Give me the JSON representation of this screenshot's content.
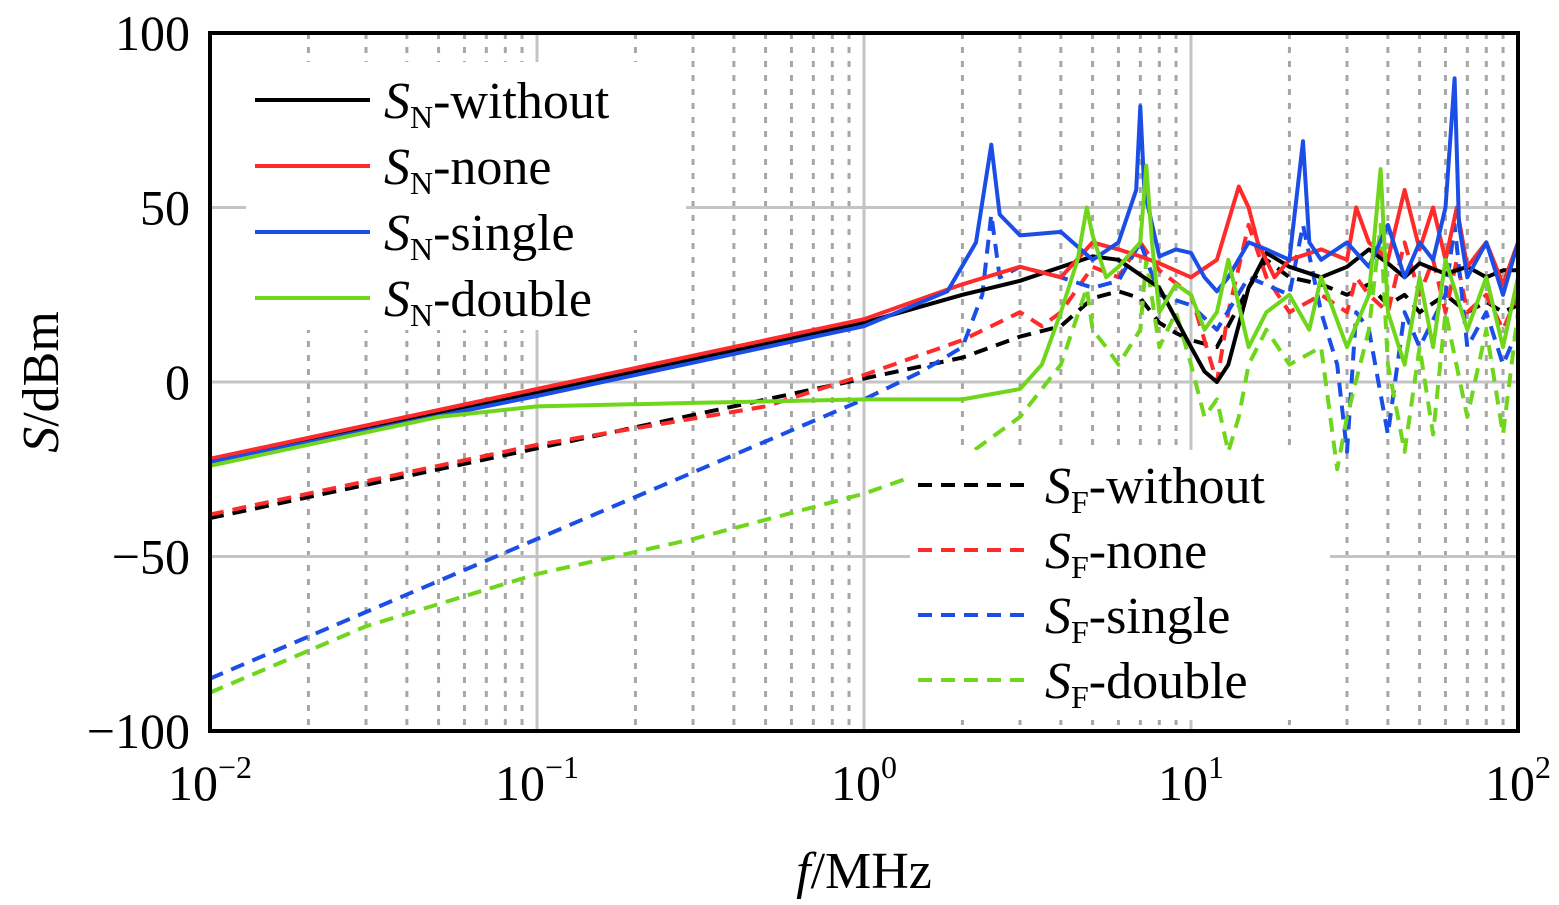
{
  "chart_data": {
    "type": "line",
    "xscale": "log",
    "xlim": [
      0.01,
      100
    ],
    "ylim": [
      -100,
      100
    ],
    "grid": true,
    "xlabel": {
      "italic": "f",
      "rest": "/MHz"
    },
    "ylabel": {
      "italic": "S",
      "rest": "/dBm"
    },
    "xticks": [
      {
        "value": 0.01,
        "base": "10",
        "exp": "−2"
      },
      {
        "value": 0.1,
        "base": "10",
        "exp": "−1"
      },
      {
        "value": 1,
        "base": "10",
        "exp": "0"
      },
      {
        "value": 10,
        "base": "10",
        "exp": "1"
      },
      {
        "value": 100,
        "base": "10",
        "exp": "2"
      }
    ],
    "yticks": [
      {
        "value": -100,
        "label": "−100"
      },
      {
        "value": -50,
        "label": "−50"
      },
      {
        "value": 0,
        "label": "0"
      },
      {
        "value": 50,
        "label": "50"
      },
      {
        "value": 100,
        "label": "100"
      }
    ],
    "legends": [
      {
        "placement": "top-left",
        "entries": [
          0,
          1,
          2,
          3
        ]
      },
      {
        "placement": "bottom-right",
        "entries": [
          4,
          5,
          6,
          7
        ]
      }
    ],
    "series": [
      {
        "name": "without",
        "symbol": "S",
        "sub": "N",
        "color": "#000000",
        "dash": "solid",
        "points": [
          [
            0.01,
            -23
          ],
          [
            0.1,
            -3
          ],
          [
            1,
            17
          ],
          [
            2,
            25
          ],
          [
            3,
            29
          ],
          [
            5,
            36
          ],
          [
            6,
            35
          ],
          [
            8,
            27
          ],
          [
            10,
            10
          ],
          [
            11,
            3
          ],
          [
            12,
            0
          ],
          [
            13,
            5
          ],
          [
            15,
            27
          ],
          [
            17,
            37
          ],
          [
            20,
            33
          ],
          [
            25,
            30
          ],
          [
            30,
            33
          ],
          [
            35,
            38
          ],
          [
            40,
            34
          ],
          [
            45,
            30
          ],
          [
            50,
            34
          ],
          [
            60,
            31
          ],
          [
            70,
            33
          ],
          [
            80,
            30
          ],
          [
            90,
            32
          ],
          [
            100,
            32
          ]
        ]
      },
      {
        "name": "none",
        "symbol": "S",
        "sub": "N",
        "color": "#ff2a2a",
        "dash": "solid",
        "points": [
          [
            0.01,
            -22
          ],
          [
            0.1,
            -2
          ],
          [
            1,
            18
          ],
          [
            2,
            28
          ],
          [
            3,
            33
          ],
          [
            4,
            30
          ],
          [
            5,
            40
          ],
          [
            6,
            38
          ],
          [
            7,
            36
          ],
          [
            8,
            34
          ],
          [
            10,
            30
          ],
          [
            12,
            35
          ],
          [
            14,
            56
          ],
          [
            15,
            50
          ],
          [
            16,
            40
          ],
          [
            18,
            30
          ],
          [
            20,
            35
          ],
          [
            25,
            38
          ],
          [
            30,
            35
          ],
          [
            32,
            50
          ],
          [
            35,
            40
          ],
          [
            40,
            35
          ],
          [
            45,
            55
          ],
          [
            50,
            38
          ],
          [
            55,
            50
          ],
          [
            60,
            35
          ],
          [
            65,
            50
          ],
          [
            70,
            33
          ],
          [
            80,
            40
          ],
          [
            90,
            28
          ],
          [
            100,
            40
          ]
        ]
      },
      {
        "name": "single",
        "symbol": "S",
        "sub": "N",
        "color": "#1a4ee6",
        "dash": "solid",
        "points": [
          [
            0.01,
            -23
          ],
          [
            0.1,
            -4
          ],
          [
            1,
            16
          ],
          [
            1.8,
            26
          ],
          [
            2.2,
            40
          ],
          [
            2.45,
            68
          ],
          [
            2.6,
            48
          ],
          [
            3,
            42
          ],
          [
            4,
            43
          ],
          [
            5,
            35
          ],
          [
            6,
            40
          ],
          [
            6.8,
            55
          ],
          [
            7,
            79
          ],
          [
            7.2,
            55
          ],
          [
            8,
            36
          ],
          [
            9,
            38
          ],
          [
            10,
            37
          ],
          [
            11,
            30
          ],
          [
            12,
            26
          ],
          [
            13,
            30
          ],
          [
            15,
            40
          ],
          [
            17,
            38
          ],
          [
            20,
            35
          ],
          [
            22,
            69
          ],
          [
            23,
            40
          ],
          [
            25,
            35
          ],
          [
            30,
            40
          ],
          [
            35,
            33
          ],
          [
            40,
            45
          ],
          [
            45,
            30
          ],
          [
            50,
            40
          ],
          [
            55,
            35
          ],
          [
            60,
            50
          ],
          [
            64,
            87
          ],
          [
            66,
            45
          ],
          [
            70,
            30
          ],
          [
            80,
            40
          ],
          [
            90,
            25
          ],
          [
            100,
            40
          ]
        ]
      },
      {
        "name": "double",
        "symbol": "S",
        "sub": "N",
        "color": "#6fd61b",
        "dash": "solid",
        "points": [
          [
            0.01,
            -24
          ],
          [
            0.05,
            -10
          ],
          [
            0.1,
            -7
          ],
          [
            0.3,
            -6
          ],
          [
            1,
            -5
          ],
          [
            2,
            -5
          ],
          [
            3,
            -2
          ],
          [
            3.5,
            5
          ],
          [
            4,
            20
          ],
          [
            4.5,
            35
          ],
          [
            4.8,
            50
          ],
          [
            5,
            42
          ],
          [
            5.5,
            30
          ],
          [
            6,
            33
          ],
          [
            7,
            40
          ],
          [
            7.3,
            62
          ],
          [
            7.6,
            40
          ],
          [
            8,
            20
          ],
          [
            9,
            28
          ],
          [
            10,
            25
          ],
          [
            11,
            15
          ],
          [
            12,
            20
          ],
          [
            13,
            35
          ],
          [
            15,
            10
          ],
          [
            17,
            20
          ],
          [
            20,
            25
          ],
          [
            23,
            15
          ],
          [
            25,
            30
          ],
          [
            30,
            10
          ],
          [
            35,
            25
          ],
          [
            38,
            61
          ],
          [
            40,
            20
          ],
          [
            45,
            5
          ],
          [
            50,
            30
          ],
          [
            55,
            10
          ],
          [
            60,
            35
          ],
          [
            70,
            15
          ],
          [
            80,
            30
          ],
          [
            90,
            10
          ],
          [
            100,
            30
          ]
        ]
      },
      {
        "name": "without",
        "symbol": "S",
        "sub": "F",
        "color": "#000000",
        "dash": "dashed",
        "points": [
          [
            0.01,
            -39
          ],
          [
            0.1,
            -19
          ],
          [
            1,
            1
          ],
          [
            2,
            7
          ],
          [
            3,
            13
          ],
          [
            4,
            16
          ],
          [
            5,
            24
          ],
          [
            6,
            26
          ],
          [
            7,
            24
          ],
          [
            8,
            17
          ],
          [
            9,
            14
          ],
          [
            10,
            12
          ],
          [
            12,
            10
          ],
          [
            15,
            27
          ],
          [
            17,
            35
          ],
          [
            20,
            30
          ],
          [
            25,
            28
          ],
          [
            30,
            25
          ],
          [
            35,
            28
          ],
          [
            40,
            22
          ],
          [
            45,
            25
          ],
          [
            50,
            20
          ],
          [
            60,
            25
          ],
          [
            70,
            20
          ],
          [
            80,
            23
          ],
          [
            90,
            20
          ],
          [
            100,
            22
          ]
        ]
      },
      {
        "name": "none",
        "symbol": "S",
        "sub": "F",
        "color": "#ff2a2a",
        "dash": "dashed",
        "points": [
          [
            0.01,
            -38
          ],
          [
            0.1,
            -18
          ],
          [
            0.5,
            -7
          ],
          [
            1,
            2
          ],
          [
            2,
            12
          ],
          [
            3,
            20
          ],
          [
            3.5,
            16
          ],
          [
            4,
            20
          ],
          [
            5,
            33
          ],
          [
            6,
            30
          ],
          [
            7,
            40
          ],
          [
            8,
            32
          ],
          [
            10,
            25
          ],
          [
            12,
            0
          ],
          [
            13,
            20
          ],
          [
            15,
            45
          ],
          [
            17,
            30
          ],
          [
            20,
            20
          ],
          [
            25,
            25
          ],
          [
            30,
            20
          ],
          [
            32,
            30
          ],
          [
            35,
            25
          ],
          [
            40,
            20
          ],
          [
            45,
            40
          ],
          [
            50,
            25
          ],
          [
            55,
            35
          ],
          [
            60,
            20
          ],
          [
            65,
            35
          ],
          [
            70,
            20
          ],
          [
            80,
            25
          ],
          [
            90,
            15
          ],
          [
            100,
            25
          ]
        ]
      },
      {
        "name": "single",
        "symbol": "S",
        "sub": "F",
        "color": "#1a4ee6",
        "dash": "dashed",
        "points": [
          [
            0.01,
            -85
          ],
          [
            0.1,
            -45
          ],
          [
            1,
            -5
          ],
          [
            1.5,
            3
          ],
          [
            2,
            10
          ],
          [
            2.3,
            25
          ],
          [
            2.45,
            48
          ],
          [
            2.6,
            30
          ],
          [
            3,
            33
          ],
          [
            4,
            30
          ],
          [
            5,
            27
          ],
          [
            6,
            29
          ],
          [
            7,
            40
          ],
          [
            8,
            25
          ],
          [
            10,
            22
          ],
          [
            12,
            15
          ],
          [
            15,
            30
          ],
          [
            20,
            25
          ],
          [
            22,
            45
          ],
          [
            25,
            20
          ],
          [
            28,
            5
          ],
          [
            30,
            -20
          ],
          [
            32,
            20
          ],
          [
            35,
            15
          ],
          [
            40,
            -15
          ],
          [
            45,
            20
          ],
          [
            50,
            10
          ],
          [
            60,
            25
          ],
          [
            64,
            45
          ],
          [
            70,
            10
          ],
          [
            80,
            20
          ],
          [
            90,
            5
          ],
          [
            100,
            15
          ]
        ]
      },
      {
        "name": "double",
        "symbol": "S",
        "sub": "F",
        "color": "#6fd61b",
        "dash": "dashed",
        "points": [
          [
            0.01,
            -89
          ],
          [
            0.03,
            -70
          ],
          [
            0.1,
            -55
          ],
          [
            0.3,
            -45
          ],
          [
            1,
            -32
          ],
          [
            2,
            -22
          ],
          [
            3,
            -10
          ],
          [
            4,
            5
          ],
          [
            4.8,
            27
          ],
          [
            5,
            15
          ],
          [
            5.5,
            10
          ],
          [
            6,
            5
          ],
          [
            7,
            15
          ],
          [
            7.3,
            35
          ],
          [
            8,
            10
          ],
          [
            9,
            20
          ],
          [
            10,
            5
          ],
          [
            11,
            -10
          ],
          [
            12,
            -5
          ],
          [
            13,
            -20
          ],
          [
            14,
            -10
          ],
          [
            15,
            5
          ],
          [
            17,
            15
          ],
          [
            20,
            5
          ],
          [
            25,
            10
          ],
          [
            28,
            -25
          ],
          [
            30,
            -10
          ],
          [
            35,
            15
          ],
          [
            38,
            45
          ],
          [
            40,
            5
          ],
          [
            45,
            -20
          ],
          [
            50,
            10
          ],
          [
            55,
            -15
          ],
          [
            60,
            20
          ],
          [
            70,
            -10
          ],
          [
            80,
            15
          ],
          [
            90,
            -15
          ],
          [
            100,
            20
          ]
        ]
      }
    ]
  }
}
